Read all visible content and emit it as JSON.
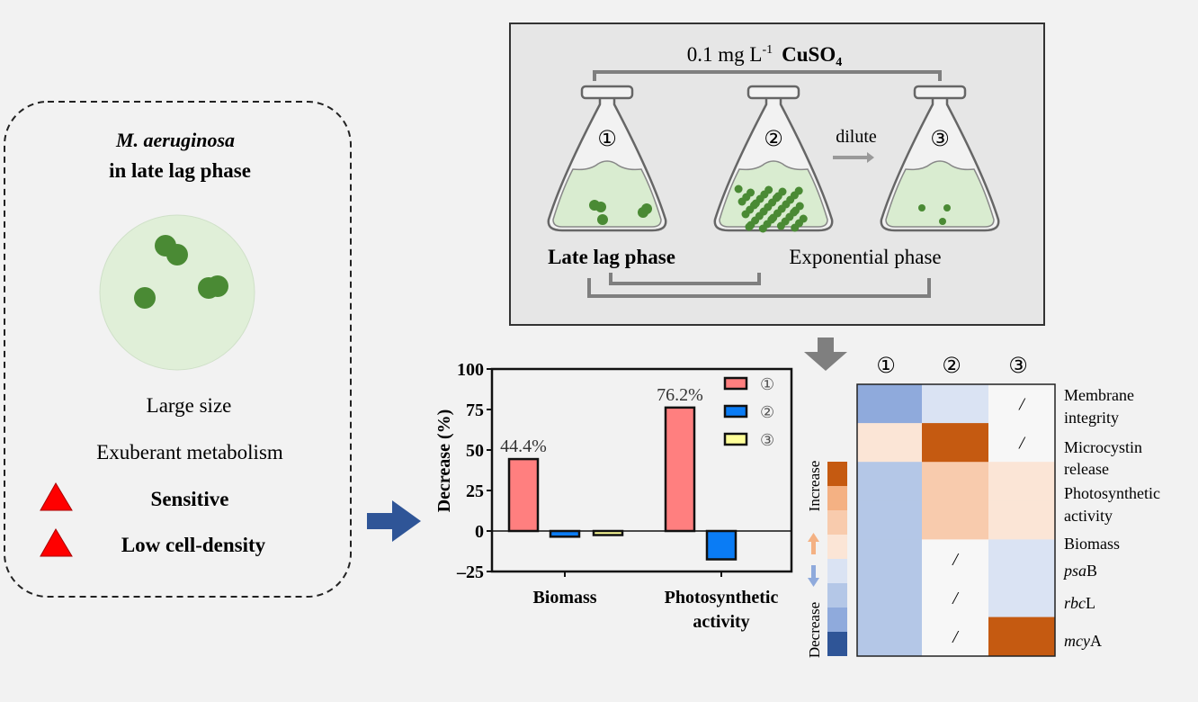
{
  "left_panel": {
    "title_species": "M. aeruginosa",
    "title_phase": "in late lag phase",
    "traits": [
      "Large size",
      "Exuberant metabolism"
    ],
    "flags": [
      "Sensitive",
      "Low cell-density"
    ],
    "flag_color": "#ff0000"
  },
  "experiment": {
    "treatment": "0.1 mg L",
    "treatment_exp": "-1",
    "compound": "CuSO",
    "compound_sub": "4",
    "flasks": [
      "①",
      "②",
      "③"
    ],
    "dilute_label": "dilute",
    "phase_late_lag": "Late lag phase",
    "phase_exponential": "Exponential phase",
    "medium_color": "#d9ecd0",
    "cell_color": "#4a8a34"
  },
  "chart_data": {
    "type": "bar",
    "ylabel": "Decrease (%)",
    "ylim": [
      -25,
      100
    ],
    "yticks": [
      "100",
      "75",
      "50",
      "25",
      "0",
      "-25"
    ],
    "categories": [
      "Biomass",
      "Photosynthetic activity"
    ],
    "category_lines": [
      [
        "Biomass"
      ],
      [
        "Photosynthetic",
        "activity"
      ]
    ],
    "series": [
      {
        "name": "①",
        "color": "#ff7f7f",
        "values": [
          44.4,
          76.2
        ]
      },
      {
        "name": "②",
        "color": "#0a7cf5",
        "values": [
          -3.5,
          -17.5
        ]
      },
      {
        "name": "③",
        "color": "#ffff99",
        "values": [
          -2.5,
          0
        ]
      }
    ],
    "data_labels": [
      "44.4%",
      "76.2%"
    ],
    "legend": "top-right"
  },
  "heatmap": {
    "columns": [
      "①",
      "②",
      "③"
    ],
    "rows": [
      [
        "Membrane",
        "integrity"
      ],
      [
        "Microcystin",
        "release"
      ],
      [
        "Photosynthetic",
        "activity"
      ],
      [
        "Biomass"
      ],
      [
        "psaB"
      ],
      [
        "rbcL"
      ],
      [
        "mcyA"
      ]
    ],
    "scale_colors": [
      "#2f5597",
      "#8faadc",
      "#b4c7e7",
      "#dae3f3",
      "#fbe5d6",
      "#f8cbad",
      "#f4b183",
      "#c55a11"
    ],
    "scale_increase": "Increase",
    "scale_decrease": "Decrease",
    "na_mark": "/",
    "cells": [
      [
        -3,
        -1,
        "/"
      ],
      [
        1,
        4,
        "/"
      ],
      [
        -2,
        2,
        1
      ],
      [
        -2,
        2,
        1
      ],
      [
        -2,
        "/",
        -1
      ],
      [
        -2,
        "/",
        -1
      ],
      [
        -2,
        "/",
        4
      ]
    ]
  }
}
